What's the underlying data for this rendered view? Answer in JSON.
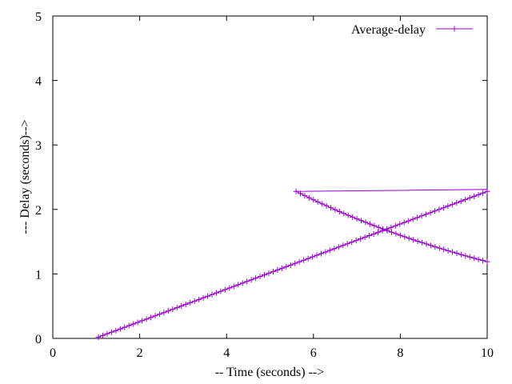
{
  "chart_data": {
    "type": "line",
    "xlabel": "-- Time (seconds) -->",
    "ylabel": "--- Delay (seconds)-->",
    "xlim": [
      0,
      10
    ],
    "ylim": [
      0,
      5
    ],
    "xticks": [
      "0",
      "2",
      "4",
      "6",
      "8",
      "10"
    ],
    "yticks": [
      "0",
      "1",
      "2",
      "3",
      "4",
      "5"
    ],
    "grid": false,
    "legend_position": "top-right",
    "series": [
      {
        "name": "Average-delay",
        "color": "#9400d3",
        "marker": "plus",
        "segments": [
          {
            "shape": "linear",
            "x_start": 1.05,
            "x_end": 10.0,
            "y_start": 0.02,
            "y_end": 2.28,
            "x_step": 0.1
          },
          {
            "shape": "linear",
            "x_start": 10.0,
            "x_end": 5.6,
            "y_start": 2.31,
            "y_end": 2.28,
            "markers": false
          },
          {
            "shape": "decay",
            "x_start": 5.6,
            "x_end": 10.0,
            "y_start": 2.28,
            "y_end": 1.19,
            "x_step": 0.1
          }
        ]
      }
    ]
  }
}
